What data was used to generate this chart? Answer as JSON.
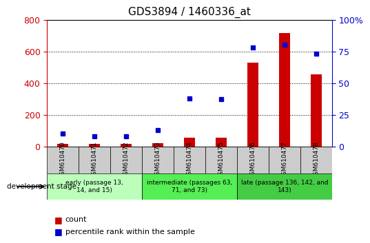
{
  "title": "GDS3894 / 1460336_at",
  "samples": [
    "GSM610470",
    "GSM610471",
    "GSM610472",
    "GSM610473",
    "GSM610474",
    "GSM610475",
    "GSM610476",
    "GSM610477",
    "GSM610478"
  ],
  "count_values": [
    15,
    15,
    15,
    20,
    55,
    55,
    530,
    715,
    455
  ],
  "percentile_values": [
    10,
    8,
    8,
    13,
    38,
    37,
    78,
    80,
    73
  ],
  "count_ylim": [
    0,
    800
  ],
  "count_yticks": [
    0,
    200,
    400,
    600,
    800
  ],
  "percentile_ylim": [
    0,
    100
  ],
  "percentile_yticks": [
    0,
    25,
    50,
    75,
    100
  ],
  "percentile_yticklabels": [
    "0",
    "25",
    "50",
    "75",
    "100%"
  ],
  "count_color": "#cc0000",
  "percentile_color": "#0000cc",
  "bar_width": 0.35,
  "groups": [
    {
      "label": "early (passage 13,\n14, and 15)",
      "start": 0,
      "end": 3,
      "color": "#bbffbb"
    },
    {
      "label": "intermediate (passages 63,\n71, and 73)",
      "start": 3,
      "end": 6,
      "color": "#55ee55"
    },
    {
      "label": "late (passage 136, 142, and\n143)",
      "start": 6,
      "end": 9,
      "color": "#44cc44"
    }
  ],
  "sample_box_color": "#cccccc",
  "legend_count_label": "count",
  "legend_percentile_label": "percentile rank within the sample",
  "dev_stage_label": "development stage",
  "left_axis_color": "#cc0000",
  "right_axis_color": "#0000cc",
  "title_fontsize": 11,
  "tick_fontsize": 9,
  "label_fontsize": 7.5,
  "legend_fontsize": 8
}
